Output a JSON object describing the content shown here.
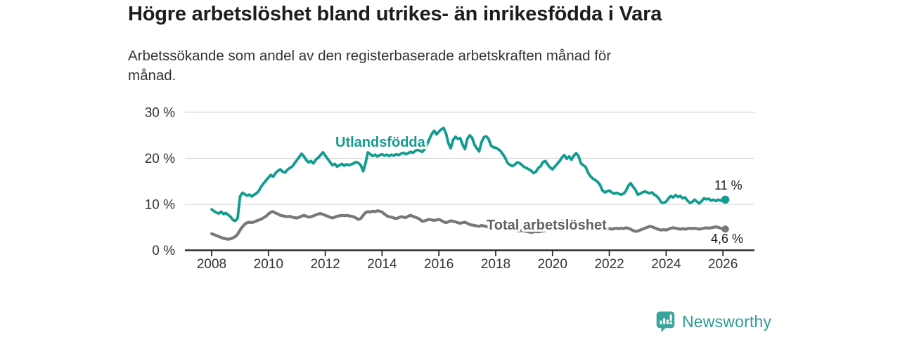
{
  "header": {
    "title": "Högre arbetslöshet bland utrikes- än inrikesfödda i Vara",
    "subtitle": "Arbetssökande som andel av den registerbaserade arbetskraften månad för\nmånad."
  },
  "footer": {
    "brand": "Newsworthy",
    "logo_icon": "bar-chart-speech-bubble-icon"
  },
  "colors": {
    "accent_teal": "#119c90",
    "series_gray": "#787878",
    "axis": "#2b2b2b",
    "grid": "#d9d9d9",
    "axis_text": "#333333",
    "logo_teal": "#3ba49e",
    "brand_text": "#2e9c94"
  },
  "chart_data": {
    "type": "line",
    "title": "Högre arbetslöshet bland utrikes- än inrikesfödda i Vara",
    "subtitle": "Arbetssökande som andel av den registerbaserade arbetskraften månad för månad.",
    "xlabel": "",
    "ylabel": "",
    "unit": "%",
    "x_start_year": 2008,
    "x_step": "monthly",
    "x_end": "2026-02",
    "ylim": [
      0,
      30
    ],
    "grid": true,
    "legend_position": "inline-labels",
    "x_ticks": [
      2008,
      2010,
      2012,
      2014,
      2016,
      2018,
      2020,
      2022,
      2024,
      2026
    ],
    "x_tick_labels": [
      "2008",
      "2010",
      "2012",
      "2014",
      "2016",
      "2018",
      "2020",
      "2022",
      "2024",
      "2026"
    ],
    "y_ticks": [
      0,
      10,
      20,
      30
    ],
    "y_tick_labels": [
      "0 %",
      "10 %",
      "20 %",
      "30 %"
    ],
    "series": [
      {
        "name": "Utlandsfödda",
        "color": "#119c90",
        "end_label": "11 %",
        "end_value": 11,
        "values": [
          8.9,
          8.5,
          8.2,
          8.0,
          8.4,
          7.9,
          8.1,
          7.7,
          7.3,
          6.6,
          6.4,
          7.0,
          11.7,
          12.5,
          12.2,
          11.9,
          12.1,
          11.7,
          12.1,
          12.4,
          13.0,
          13.9,
          14.6,
          15.2,
          15.8,
          16.4,
          16.0,
          16.8,
          17.3,
          17.6,
          17.1,
          16.9,
          17.5,
          17.9,
          18.2,
          18.9,
          19.6,
          20.3,
          21.0,
          20.4,
          19.6,
          19.1,
          19.4,
          18.9,
          19.7,
          20.1,
          20.7,
          21.3,
          20.6,
          19.9,
          19.2,
          18.5,
          18.8,
          18.2,
          18.5,
          18.8,
          18.4,
          18.7,
          18.5,
          18.7,
          18.9,
          19.2,
          19.0,
          18.5,
          17.2,
          18.9,
          21.3,
          20.9,
          20.5,
          20.8,
          20.4,
          20.7,
          20.9,
          20.6,
          20.8,
          20.5,
          20.8,
          20.6,
          20.9,
          20.7,
          21.0,
          21.2,
          20.9,
          21.1,
          21.4,
          21.2,
          21.6,
          21.9,
          21.6,
          21.4,
          22.0,
          23.0,
          24.2,
          25.3,
          26.0,
          25.2,
          25.8,
          26.3,
          26.6,
          25.4,
          23.3,
          22.2,
          24.0,
          24.7,
          24.2,
          24.4,
          23.0,
          22.0,
          24.2,
          25.0,
          24.5,
          23.0,
          22.2,
          21.5,
          23.5,
          24.6,
          24.8,
          24.2,
          22.8,
          22.4,
          22.3,
          22.0,
          21.6,
          20.9,
          20.1,
          19.0,
          18.6,
          18.3,
          18.6,
          19.1,
          19.0,
          18.6,
          18.1,
          17.9,
          17.6,
          17.3,
          16.8,
          17.1,
          17.9,
          18.3,
          19.2,
          19.4,
          18.6,
          18.0,
          17.6,
          18.2,
          18.8,
          19.4,
          20.2,
          20.7,
          19.9,
          20.4,
          19.7,
          20.6,
          21.1,
          20.5,
          18.9,
          18.5,
          18.1,
          16.9,
          16.1,
          15.6,
          15.3,
          14.9,
          14.3,
          13.1,
          12.6,
          12.8,
          13.0,
          12.6,
          12.3,
          12.5,
          12.3,
          12.1,
          12.3,
          12.9,
          14.0,
          14.6,
          13.8,
          13.2,
          12.1,
          12.3,
          12.6,
          12.8,
          12.6,
          12.4,
          12.6,
          12.1,
          11.8,
          11.2,
          10.4,
          10.3,
          10.6,
          11.3,
          11.8,
          11.5,
          12.0,
          11.6,
          11.8,
          11.3,
          11.5,
          10.8,
          10.3,
          10.5,
          11.0,
          10.6,
          10.2,
          10.7,
          11.3,
          11.1,
          11.2,
          10.8,
          11.0,
          10.7,
          11.0,
          10.8,
          11.1,
          11.0
        ]
      },
      {
        "name": "Total arbetslöshet",
        "color": "#787878",
        "end_label": "4,6 %",
        "end_value": 4.6,
        "values": [
          3.6,
          3.4,
          3.2,
          3.0,
          2.8,
          2.6,
          2.5,
          2.4,
          2.5,
          2.7,
          3.0,
          3.5,
          4.4,
          5.1,
          5.7,
          6.0,
          6.1,
          6.0,
          6.2,
          6.4,
          6.6,
          6.8,
          7.1,
          7.4,
          7.9,
          8.3,
          8.4,
          8.1,
          7.9,
          7.6,
          7.5,
          7.4,
          7.3,
          7.4,
          7.2,
          7.1,
          7.0,
          7.2,
          7.4,
          7.6,
          7.4,
          7.2,
          7.3,
          7.5,
          7.7,
          7.9,
          8.0,
          7.8,
          7.6,
          7.4,
          7.2,
          7.0,
          7.2,
          7.4,
          7.5,
          7.6,
          7.5,
          7.6,
          7.5,
          7.4,
          7.3,
          7.0,
          6.7,
          6.9,
          7.6,
          8.2,
          8.4,
          8.3,
          8.5,
          8.4,
          8.6,
          8.5,
          8.3,
          7.9,
          7.5,
          7.3,
          7.2,
          7.0,
          6.9,
          7.1,
          7.3,
          7.2,
          7.1,
          7.4,
          7.6,
          7.4,
          7.2,
          7.0,
          6.7,
          6.3,
          6.4,
          6.6,
          6.7,
          6.6,
          6.5,
          6.6,
          6.7,
          6.5,
          6.2,
          6.0,
          6.2,
          6.4,
          6.3,
          6.2,
          6.0,
          5.9,
          6.0,
          6.1,
          5.9,
          5.6,
          5.5,
          5.4,
          5.3,
          5.2,
          5.4,
          5.3,
          5.2,
          5.0,
          4.9,
          5.0,
          5.0,
          4.9,
          4.8,
          4.7,
          4.6,
          4.5,
          4.4,
          4.5,
          4.4,
          4.3,
          4.2,
          4.3,
          4.2,
          4.1,
          4.0,
          3.9,
          4.0,
          4.1,
          4.0,
          4.1,
          4.2,
          4.3,
          4.4,
          4.6,
          4.9,
          5.4,
          5.9,
          6.2,
          6.4,
          6.3,
          6.2,
          6.1,
          6.0,
          5.9,
          5.8,
          5.7,
          5.6,
          5.5,
          5.4,
          5.3,
          5.2,
          5.1,
          5.0,
          4.9,
          4.9,
          4.8,
          4.8,
          4.7,
          4.7,
          4.6,
          4.7,
          4.8,
          4.7,
          4.8,
          4.7,
          4.9,
          4.8,
          4.6,
          4.3,
          4.1,
          4.2,
          4.4,
          4.6,
          4.8,
          5.0,
          5.2,
          5.1,
          4.9,
          4.7,
          4.5,
          4.4,
          4.5,
          4.4,
          4.6,
          4.8,
          4.9,
          4.8,
          4.7,
          4.6,
          4.7,
          4.6,
          4.7,
          4.8,
          4.7,
          4.8,
          4.7,
          4.6,
          4.7,
          4.8,
          4.9,
          4.8,
          4.9,
          5.0,
          5.1,
          5.0,
          4.8,
          4.7,
          4.6
        ]
      }
    ]
  }
}
